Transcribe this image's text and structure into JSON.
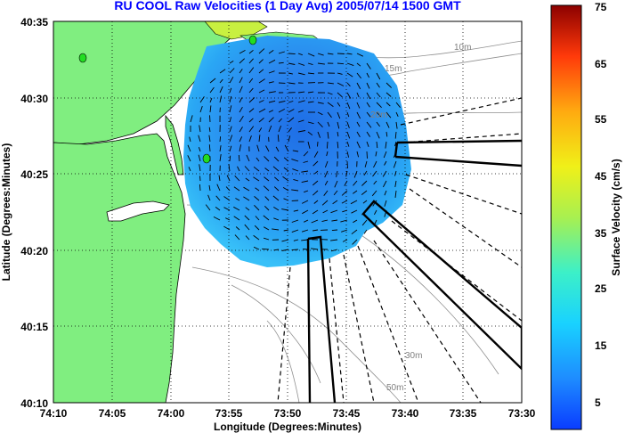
{
  "title": "RU COOL Raw Velocities (1 Day Avg) 2005/07/14 1500 GMT",
  "colors": {
    "title": "#0000ff",
    "land": "#80ee80",
    "sea": "#ffffff",
    "grid": "#000000"
  },
  "map": {
    "xlabel": "Longitude (Degrees:Minutes)",
    "ylabel": "Latitude (Degrees:Minutes)",
    "x_ticks": [
      "74:10",
      "74:05",
      "74:00",
      "73:55",
      "73:50",
      "73:45",
      "73:40",
      "73:35",
      "73:30"
    ],
    "y_ticks": [
      "40:35",
      "40:30",
      "40:25",
      "40:20",
      "40:15",
      "40:10"
    ],
    "depth_labels": [
      "10m",
      "15m",
      "20m",
      "30m",
      "50m"
    ]
  },
  "colorbar": {
    "label": "Surface Velocity (cm/s)",
    "ticks": [
      "75",
      "65",
      "55",
      "45",
      "35",
      "25",
      "15",
      "5"
    ],
    "range": [
      0,
      75
    ]
  },
  "chart_data": {
    "type": "heatmap",
    "title": "RU COOL Raw Velocities (1 Day Avg) 2005/07/14 1500 GMT",
    "xlabel": "Longitude (Degrees:Minutes)",
    "ylabel": "Latitude (Degrees:Minutes)",
    "xlim": [
      "74:10",
      "73:30"
    ],
    "ylim": [
      "40:10",
      "40:35"
    ],
    "colorbar_range": [
      0,
      75
    ],
    "colorbar_unit": "cm/s"
  }
}
